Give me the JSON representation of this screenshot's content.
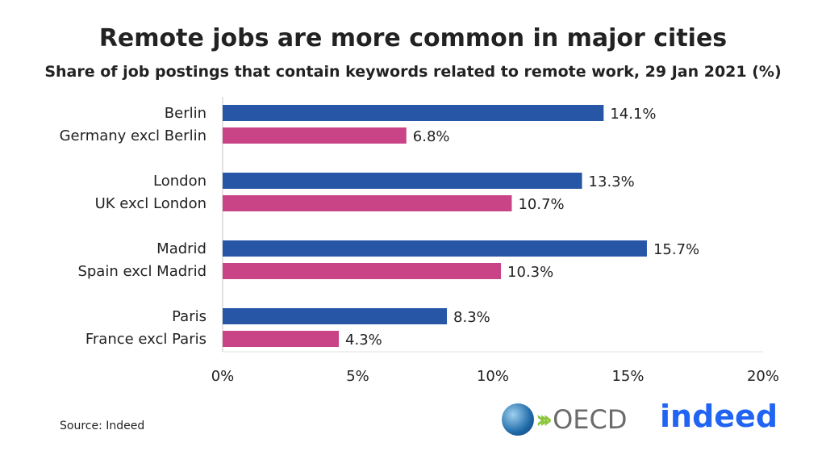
{
  "chart_data": {
    "type": "bar",
    "orientation": "horizontal",
    "title": "Remote jobs are more common in major cities",
    "subtitle": "Share of job postings that contain keywords related to remote work, 29 Jan 2021 (%)",
    "categories": [
      "Berlin",
      "Germany excl Berlin",
      "London",
      "UK excl London",
      "Madrid",
      "Spain excl Madrid",
      "Paris",
      "France excl Paris"
    ],
    "values": [
      14.1,
      6.8,
      13.3,
      10.7,
      15.7,
      10.3,
      8.3,
      4.3
    ],
    "data_labels": [
      "14.1%",
      "6.8%",
      "13.3%",
      "10.7%",
      "15.7%",
      "10.3%",
      "8.3%",
      "4.3%"
    ],
    "bar_types": [
      "city",
      "rest",
      "city",
      "rest",
      "city",
      "rest",
      "city",
      "rest"
    ],
    "xlim": [
      0,
      20
    ],
    "xticks": [
      0,
      5,
      10,
      15,
      20
    ],
    "xtick_labels": [
      "0%",
      "5%",
      "10%",
      "15%",
      "20%"
    ],
    "grid": false,
    "colors": {
      "city": "#2756a6",
      "rest": "#c94487"
    }
  },
  "source": "Source: Indeed",
  "logos": {
    "oecd": "OECD",
    "indeed": "indeed"
  }
}
